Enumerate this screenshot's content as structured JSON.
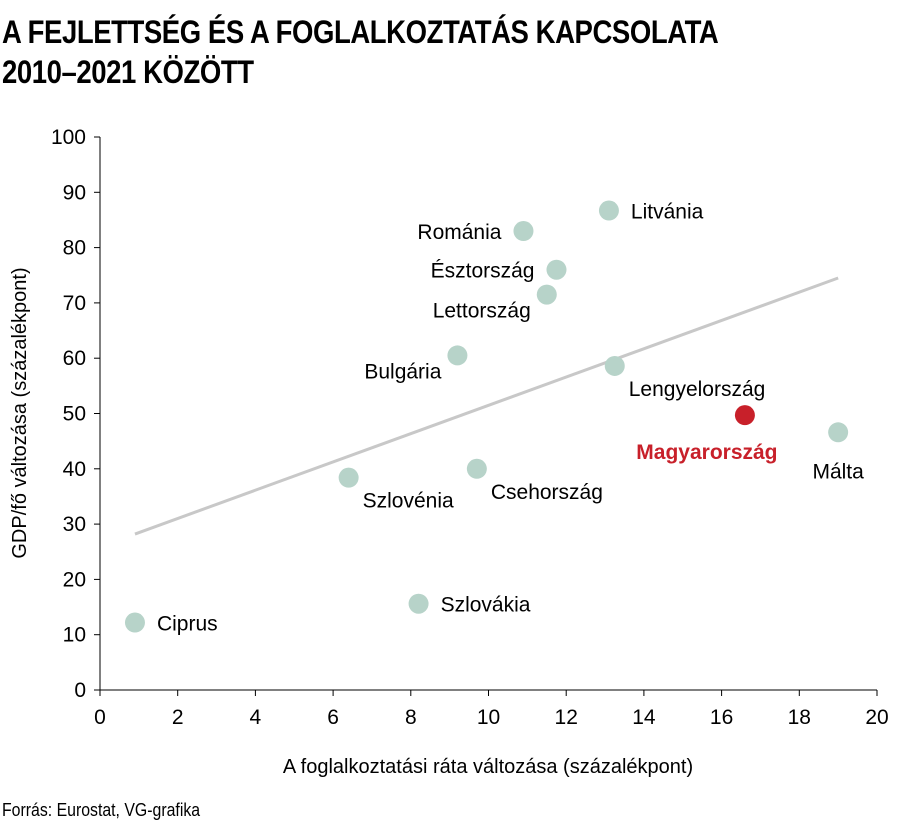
{
  "title": {
    "line1": "A FEJLETTSÉG ÉS A FOGLALKOZTATÁS KAPCSOLATA",
    "line2": "2010–2021 KÖZÖTT"
  },
  "source": "Forrás: Eurostat, VG-grafika",
  "colors": {
    "point": "#b7d3c9",
    "highlight": "#c8202a",
    "trend": "#c8c8c8",
    "axis": "#000000"
  },
  "chart_data": {
    "type": "scatter",
    "xlabel": "A foglalkoztatási ráta változása (százalékpont)",
    "ylabel": "GDP/fő változása (százalékpont)",
    "xlim": [
      0,
      20
    ],
    "ylim": [
      0,
      100
    ],
    "xticks": [
      0,
      2,
      4,
      6,
      8,
      10,
      12,
      14,
      16,
      18,
      20
    ],
    "yticks": [
      0,
      10,
      20,
      30,
      40,
      50,
      60,
      70,
      80,
      90,
      100
    ],
    "grid": false,
    "points": [
      {
        "label": "Ciprus",
        "x": 0.9,
        "y": 12.2,
        "highlight": false,
        "label_pos": "right"
      },
      {
        "label": "Szlovákia",
        "x": 8.2,
        "y": 15.6,
        "highlight": false,
        "label_pos": "right"
      },
      {
        "label": "Szlovénia",
        "x": 6.4,
        "y": 38.4,
        "highlight": false,
        "label_pos": "below-right"
      },
      {
        "label": "Csehország",
        "x": 9.7,
        "y": 40.0,
        "highlight": false,
        "label_pos": "below-right"
      },
      {
        "label": "Bulgária",
        "x": 9.2,
        "y": 60.5,
        "highlight": false,
        "label_pos": "below-left"
      },
      {
        "label": "Lettország",
        "x": 11.5,
        "y": 71.5,
        "highlight": false,
        "label_pos": "below-left"
      },
      {
        "label": "Észtország",
        "x": 11.75,
        "y": 76.0,
        "highlight": false,
        "label_pos": "left"
      },
      {
        "label": "Románia",
        "x": 10.9,
        "y": 83.0,
        "highlight": false,
        "label_pos": "left"
      },
      {
        "label": "Litvánia",
        "x": 13.1,
        "y": 86.7,
        "highlight": false,
        "label_pos": "right"
      },
      {
        "label": "Lengyelország",
        "x": 13.25,
        "y": 58.6,
        "highlight": false,
        "label_pos": "below-right"
      },
      {
        "label": "Magyarország",
        "x": 16.6,
        "y": 49.7,
        "highlight": true,
        "label_pos": "below"
      },
      {
        "label": "Málta",
        "x": 19.0,
        "y": 46.6,
        "highlight": false,
        "label_pos": "below"
      }
    ],
    "trendline": {
      "x": [
        0.9,
        19.0
      ],
      "y": [
        28.2,
        74.5
      ]
    }
  }
}
